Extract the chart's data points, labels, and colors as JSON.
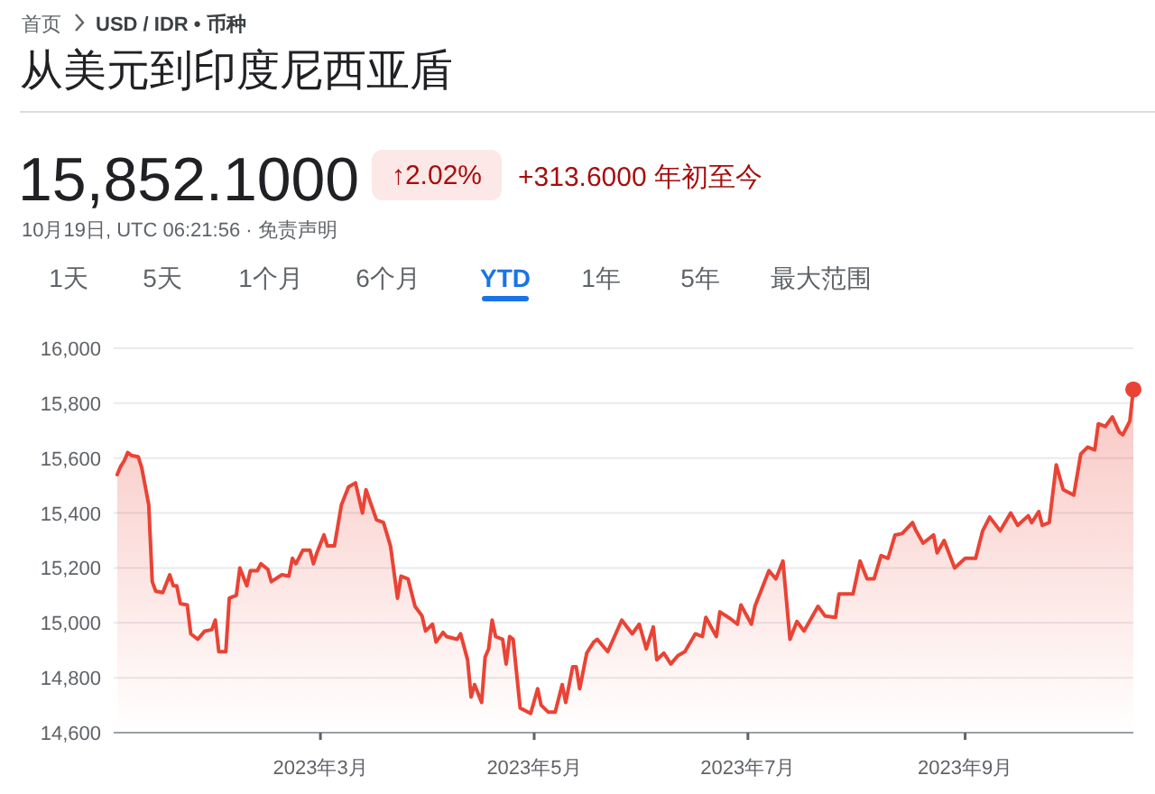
{
  "chart_data": {
    "type": "area",
    "title": "从美元到印度尼西亚盾",
    "annotations": [
      "首页",
      "USD / IDR • 币种",
      "15,852.1000",
      "↑2.02%",
      "+313.6000 年初至今",
      "10月19日, UTC 06:21:56 · 免责声明",
      "1天",
      "5天",
      "1个月",
      "6个月",
      "YTD",
      "1年",
      "5年",
      "最大范围"
    ],
    "x": [
      "2023-01-02",
      "2023-01-03",
      "2023-01-04",
      "2023-01-05",
      "2023-01-06",
      "2023-01-08",
      "2023-01-09",
      "2023-01-11",
      "2023-01-12",
      "2023-01-13",
      "2023-01-15",
      "2023-01-17",
      "2023-01-18",
      "2023-01-19",
      "2023-01-20",
      "2023-01-22",
      "2023-01-23",
      "2023-01-25",
      "2023-01-27",
      "2023-01-29",
      "2023-01-30",
      "2023-01-31",
      "2023-02-02",
      "2023-02-03",
      "2023-02-05",
      "2023-02-06",
      "2023-02-08",
      "2023-02-09",
      "2023-02-11",
      "2023-02-12",
      "2023-02-14",
      "2023-02-15",
      "2023-02-18",
      "2023-02-20",
      "2023-02-21",
      "2023-02-22",
      "2023-02-24",
      "2023-02-26",
      "2023-02-27",
      "2023-02-28",
      "2023-03-02",
      "2023-03-03",
      "2023-03-05",
      "2023-03-07",
      "2023-03-09",
      "2023-03-11",
      "2023-03-13",
      "2023-03-14",
      "2023-03-17",
      "2023-03-19",
      "2023-03-21",
      "2023-03-23",
      "2023-03-24",
      "2023-03-26",
      "2023-03-28",
      "2023-03-30",
      "2023-03-31",
      "2023-04-02",
      "2023-04-03",
      "2023-04-05",
      "2023-04-06",
      "2023-04-09",
      "2023-04-10",
      "2023-04-12",
      "2023-04-13",
      "2023-04-14",
      "2023-04-16",
      "2023-04-17",
      "2023-04-18",
      "2023-04-19",
      "2023-04-20",
      "2023-04-22",
      "2023-04-23",
      "2023-04-24",
      "2023-04-25",
      "2023-04-27",
      "2023-04-30",
      "2023-05-02",
      "2023-05-03",
      "2023-05-05",
      "2023-05-07",
      "2023-05-09",
      "2023-05-10",
      "2023-05-12",
      "2023-05-13",
      "2023-05-14",
      "2023-05-16",
      "2023-05-18",
      "2023-05-19",
      "2023-05-22",
      "2023-05-26",
      "2023-05-29",
      "2023-05-31",
      "2023-06-02",
      "2023-06-04",
      "2023-06-05",
      "2023-06-07",
      "2023-06-09",
      "2023-06-11",
      "2023-06-13",
      "2023-06-16",
      "2023-06-18",
      "2023-06-19",
      "2023-06-22",
      "2023-06-23",
      "2023-06-26",
      "2023-06-28",
      "2023-06-29",
      "2023-07-02",
      "2023-07-03",
      "2023-07-07",
      "2023-07-09",
      "2023-07-11",
      "2023-07-13",
      "2023-07-15",
      "2023-07-17",
      "2023-07-21",
      "2023-07-23",
      "2023-07-26",
      "2023-07-27",
      "2023-07-31",
      "2023-08-02",
      "2023-08-04",
      "2023-08-06",
      "2023-08-08",
      "2023-08-10",
      "2023-08-12",
      "2023-08-14",
      "2023-08-17",
      "2023-08-18",
      "2023-08-20",
      "2023-08-23",
      "2023-08-24",
      "2023-08-26",
      "2023-08-29",
      "2023-09-01",
      "2023-09-04",
      "2023-09-06",
      "2023-09-08",
      "2023-09-11",
      "2023-09-14",
      "2023-09-16",
      "2023-09-19",
      "2023-09-20",
      "2023-09-22",
      "2023-09-23",
      "2023-09-25",
      "2023-09-27",
      "2023-09-29",
      "2023-10-02",
      "2023-10-04",
      "2023-10-06",
      "2023-10-08",
      "2023-10-09",
      "2023-10-11",
      "2023-10-13",
      "2023-10-15",
      "2023-10-16",
      "2023-10-18",
      "2023-10-19"
    ],
    "series": [
      {
        "color": "#ea4335",
        "values": [
          15540,
          15570,
          15590,
          15620,
          15610,
          15605,
          15565,
          15430,
          15150,
          15115,
          15110,
          15175,
          15135,
          15135,
          15070,
          15065,
          14960,
          14940,
          14970,
          14975,
          15010,
          14895,
          14895,
          15090,
          15100,
          15200,
          15135,
          15190,
          15190,
          15215,
          15195,
          15150,
          15175,
          15170,
          15235,
          15215,
          15265,
          15265,
          15215,
          15255,
          15320,
          15280,
          15280,
          15430,
          15495,
          15510,
          15400,
          15485,
          15375,
          15365,
          15280,
          15090,
          15170,
          15160,
          15060,
          15025,
          14970,
          14995,
          14930,
          14965,
          14950,
          14940,
          14960,
          14865,
          14730,
          14775,
          14710,
          14875,
          14905,
          15010,
          14950,
          14940,
          14850,
          14950,
          14940,
          14690,
          14670,
          14760,
          14700,
          14675,
          14675,
          14775,
          14710,
          14840,
          14840,
          14760,
          14890,
          14930,
          14940,
          14895,
          15010,
          14960,
          14995,
          14905,
          14985,
          14865,
          14890,
          14850,
          14880,
          14895,
          14960,
          14950,
          15020,
          14950,
          15040,
          15015,
          14995,
          15065,
          14995,
          15060,
          15190,
          15160,
          15225,
          14940,
          15005,
          14970,
          15060,
          15025,
          15020,
          15105,
          15105,
          15225,
          15160,
          15160,
          15245,
          15235,
          15320,
          15325,
          15365,
          15335,
          15290,
          15320,
          15255,
          15300,
          15200,
          15235,
          15235,
          15335,
          15385,
          15335,
          15400,
          15355,
          15390,
          15365,
          15405,
          15355,
          15365,
          15575,
          15485,
          15465,
          15615,
          15640,
          15630,
          15725,
          15715,
          15750,
          15695,
          15685,
          15735,
          15850
        ]
      }
    ],
    "xlim": [
      "2023-01-01",
      "2023-10-19"
    ],
    "xticks": [
      {
        "value": "2023-03-01",
        "label": "2023年3月"
      },
      {
        "value": "2023-05-01",
        "label": "2023年5月"
      },
      {
        "value": "2023-07-01",
        "label": "2023年7月"
      },
      {
        "value": "2023-09-01",
        "label": "2023年9月"
      }
    ],
    "ylim": [
      14600,
      16000
    ],
    "yticks": [
      {
        "value": 14600,
        "label": "14,600"
      },
      {
        "value": 14800,
        "label": "14,800"
      },
      {
        "value": 15000,
        "label": "15,000"
      },
      {
        "value": 15200,
        "label": "15,200"
      },
      {
        "value": 15400,
        "label": "15,400"
      },
      {
        "value": 15600,
        "label": "15,600"
      },
      {
        "value": 15800,
        "label": "15,800"
      },
      {
        "value": 16000,
        "label": "16,000"
      }
    ],
    "grid": "y"
  }
}
